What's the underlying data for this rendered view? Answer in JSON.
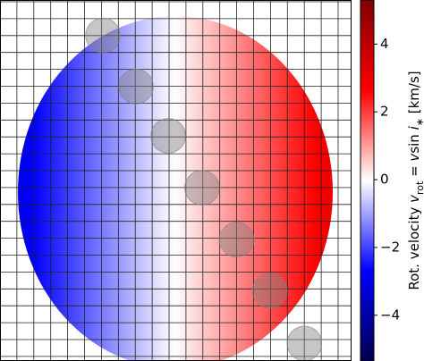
{
  "chart_data": {
    "type": "stellar-disk",
    "colormap": "seismic",
    "vsini": 3,
    "planets": {
      "x": [
        -0.46,
        -0.25,
        -0.045,
        0.17,
        0.39,
        0.6,
        0.82
      ],
      "y": [
        0.89,
        0.6,
        0.32,
        0.025,
        -0.27,
        -0.56,
        -0.86
      ],
      "radius": 0.11,
      "color": "#808080"
    },
    "colorbar": {
      "lim": [
        -5.35,
        5.3
      ],
      "ticks": [
        {
          "value": -4,
          "label": "−4"
        },
        {
          "value": -2,
          "label": "−2"
        },
        0,
        2,
        4
      ],
      "label": [
        "Rot. velocity ",
        "v",
        "rot",
        " = ",
        "v",
        "sin ",
        "i",
        "∗",
        " [km/s]"
      ]
    }
  }
}
